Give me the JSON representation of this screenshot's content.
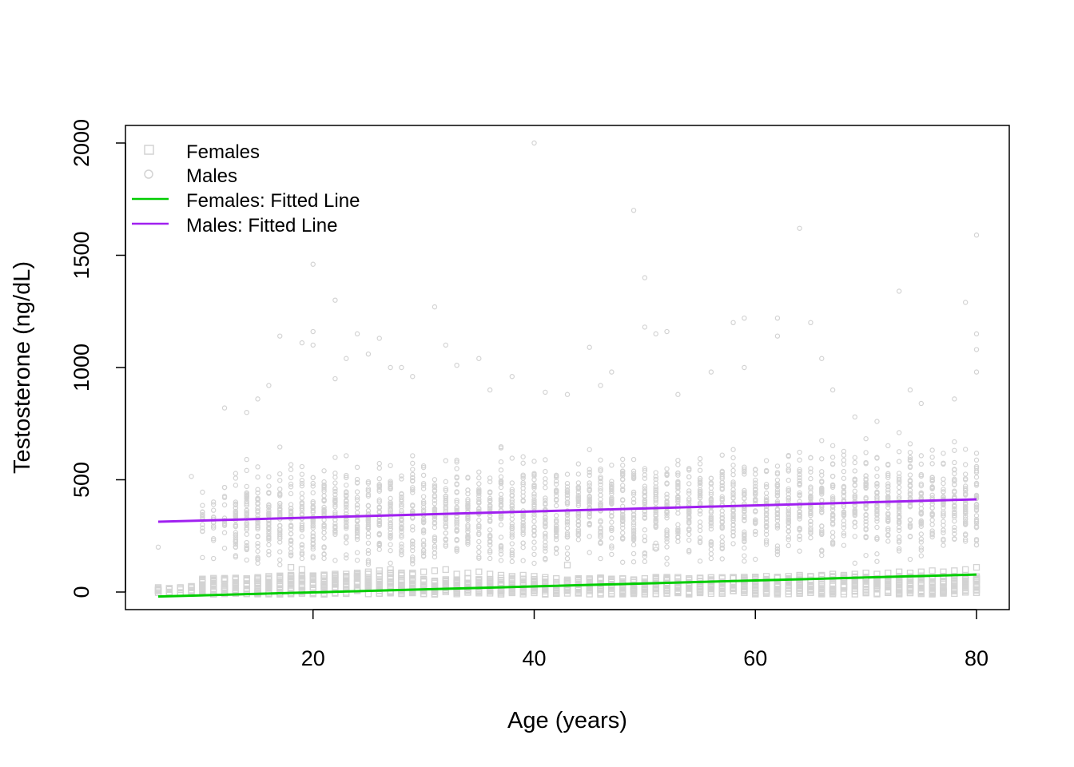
{
  "chart_data": {
    "type": "scatter",
    "title": "",
    "xlabel": "Age (years)",
    "ylabel": "Testosterone (ng/dL)",
    "xlim": [
      6,
      80
    ],
    "ylim": [
      0,
      2000
    ],
    "xticks": [
      20,
      40,
      60,
      80
    ],
    "yticks": [
      0,
      500,
      1000,
      1500,
      2000
    ],
    "grid": false,
    "legend_position": "top-left",
    "series": [
      {
        "name": "Females",
        "kind": "points",
        "marker": "square",
        "color": "#d3d3d3",
        "description_points": [
          [
            6,
            10
          ],
          [
            6,
            20
          ],
          [
            7,
            15
          ],
          [
            8,
            20
          ],
          [
            9,
            25
          ],
          [
            10,
            30
          ],
          [
            11,
            40
          ],
          [
            12,
            50
          ],
          [
            13,
            55
          ],
          [
            14,
            60
          ],
          [
            15,
            65
          ],
          [
            16,
            70
          ],
          [
            17,
            72
          ],
          [
            18,
            75
          ],
          [
            18,
            110
          ],
          [
            19,
            70
          ],
          [
            19,
            100
          ],
          [
            20,
            70
          ],
          [
            21,
            75
          ],
          [
            22,
            80
          ],
          [
            23,
            80
          ],
          [
            24,
            85
          ],
          [
            25,
            90
          ],
          [
            26,
            95
          ],
          [
            27,
            100
          ],
          [
            28,
            80
          ],
          [
            29,
            85
          ],
          [
            30,
            90
          ],
          [
            31,
            95
          ],
          [
            32,
            100
          ],
          [
            33,
            80
          ],
          [
            34,
            85
          ],
          [
            35,
            90
          ],
          [
            36,
            80
          ],
          [
            37,
            75
          ],
          [
            38,
            70
          ],
          [
            39,
            75
          ],
          [
            40,
            70
          ],
          [
            41,
            65
          ],
          [
            42,
            60
          ],
          [
            43,
            120
          ],
          [
            44,
            60
          ],
          [
            45,
            55
          ],
          [
            46,
            60
          ],
          [
            47,
            55
          ],
          [
            48,
            60
          ],
          [
            49,
            55
          ],
          [
            50,
            60
          ],
          [
            51,
            200
          ],
          [
            52,
            55
          ],
          [
            53,
            60
          ],
          [
            54,
            55
          ],
          [
            55,
            60
          ],
          [
            56,
            55
          ],
          [
            57,
            60
          ],
          [
            58,
            65
          ],
          [
            59,
            60
          ],
          [
            60,
            65
          ],
          [
            61,
            70
          ],
          [
            62,
            65
          ],
          [
            63,
            70
          ],
          [
            64,
            75
          ],
          [
            65,
            70
          ],
          [
            66,
            75
          ],
          [
            67,
            80
          ],
          [
            68,
            75
          ],
          [
            69,
            80
          ],
          [
            70,
            85
          ],
          [
            71,
            80
          ],
          [
            72,
            85
          ],
          [
            73,
            90
          ],
          [
            74,
            85
          ],
          [
            75,
            90
          ],
          [
            76,
            95
          ],
          [
            77,
            90
          ],
          [
            78,
            95
          ],
          [
            79,
            100
          ],
          [
            80,
            110
          ]
        ]
      },
      {
        "name": "Males",
        "kind": "points",
        "marker": "circle",
        "color": "#d3d3d3",
        "description_points": [
          [
            6,
            200
          ],
          [
            9,
            515
          ],
          [
            10,
            340
          ],
          [
            11,
            390
          ],
          [
            12,
            820
          ],
          [
            14,
            800
          ],
          [
            15,
            860
          ],
          [
            16,
            920
          ],
          [
            17,
            1140
          ],
          [
            19,
            1110
          ],
          [
            20,
            1100
          ],
          [
            20,
            1160
          ],
          [
            20,
            1460
          ],
          [
            22,
            1300
          ],
          [
            22,
            950
          ],
          [
            23,
            1040
          ],
          [
            24,
            1150
          ],
          [
            25,
            1060
          ],
          [
            26,
            1130
          ],
          [
            27,
            1000
          ],
          [
            28,
            1000
          ],
          [
            29,
            960
          ],
          [
            31,
            1270
          ],
          [
            32,
            1100
          ],
          [
            33,
            1010
          ],
          [
            35,
            1040
          ],
          [
            36,
            900
          ],
          [
            38,
            960
          ],
          [
            40,
            2000
          ],
          [
            41,
            890
          ],
          [
            43,
            880
          ],
          [
            45,
            1090
          ],
          [
            46,
            920
          ],
          [
            47,
            980
          ],
          [
            49,
            1700
          ],
          [
            50,
            1400
          ],
          [
            50,
            1180
          ],
          [
            51,
            1150
          ],
          [
            52,
            1160
          ],
          [
            53,
            880
          ],
          [
            56,
            980
          ],
          [
            58,
            1200
          ],
          [
            59,
            1220
          ],
          [
            59,
            1000
          ],
          [
            62,
            1220
          ],
          [
            62,
            1140
          ],
          [
            64,
            1620
          ],
          [
            65,
            1200
          ],
          [
            66,
            1040
          ],
          [
            67,
            900
          ],
          [
            69,
            780
          ],
          [
            71,
            760
          ],
          [
            73,
            1340
          ],
          [
            74,
            900
          ],
          [
            75,
            840
          ],
          [
            78,
            860
          ],
          [
            79,
            1290
          ],
          [
            80,
            1590
          ],
          [
            80,
            1150
          ],
          [
            80,
            1080
          ],
          [
            80,
            980
          ]
        ]
      },
      {
        "name": "Females: Fitted Line",
        "kind": "line",
        "color": "#00cd00",
        "x": [
          6,
          80
        ],
        "y": [
          -20,
          78
        ]
      },
      {
        "name": "Males: Fitted Line",
        "kind": "line",
        "color": "#a020f0",
        "x": [
          6,
          80
        ],
        "y": [
          313,
          413
        ]
      }
    ]
  }
}
